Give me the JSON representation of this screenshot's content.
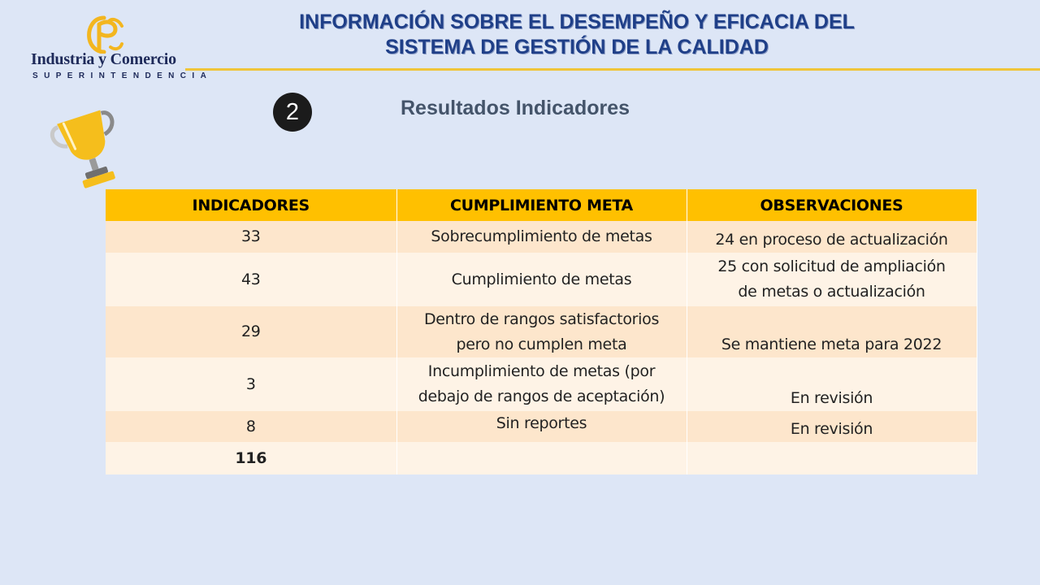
{
  "logo": {
    "organization": "Industria y Comercio",
    "tagline": "SUPERINTENDENCIA",
    "colors": {
      "gold": "#f3b61f",
      "navy": "#1e2a5a"
    }
  },
  "header": {
    "title_line1": "INFORMACIÓN SOBRE EL DESEMPEÑO Y EFICACIA DEL",
    "title_line2": "SISTEMA DE GESTIÓN DE LA  CALIDAD"
  },
  "section": {
    "number": "2",
    "title": "Resultados Indicadores",
    "icon": "trophy-icon"
  },
  "table": {
    "headers": [
      "INDICADORES",
      "CUMPLIMIENTO META",
      "OBSERVACIONES"
    ],
    "rows": [
      {
        "indicadores": "33",
        "cumplimiento": [
          "Sobrecumplimiento de metas"
        ],
        "observaciones": [
          "24 en proceso de actualización"
        ]
      },
      {
        "indicadores": "43",
        "cumplimiento": [
          "Cumplimiento de metas"
        ],
        "observaciones": [
          "25 con solicitud de ampliación",
          "de metas o actualización"
        ]
      },
      {
        "indicadores": "29",
        "cumplimiento": [
          "Dentro de rangos satisfactorios",
          "pero no cumplen meta"
        ],
        "observaciones": [
          "Se mantiene meta para 2022"
        ]
      },
      {
        "indicadores": "3",
        "cumplimiento": [
          "Incumplimiento de metas (por",
          "debajo de rangos de aceptación)"
        ],
        "observaciones": [
          "En revisión"
        ]
      },
      {
        "indicadores": "8",
        "cumplimiento": [
          "Sin reportes"
        ],
        "observaciones": [
          "En revisión"
        ]
      }
    ],
    "total": "116",
    "colors": {
      "header": "#ffc000",
      "row_odd": "#fde6cc",
      "row_even": "#fef3e6"
    }
  }
}
